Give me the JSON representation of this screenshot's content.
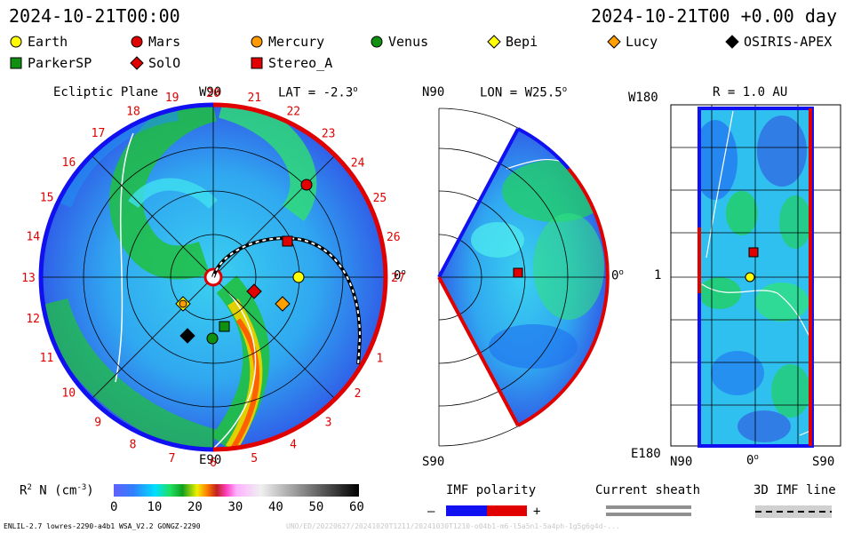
{
  "header": {
    "left_time": "2024-10-21T00:00",
    "right_time": "2024-10-21T00 +0.00 day"
  },
  "legend": [
    {
      "name": "Earth",
      "shape": "circle",
      "color": "#ffff00"
    },
    {
      "name": "Mars",
      "shape": "circle",
      "color": "#e00000"
    },
    {
      "name": "Mercury",
      "shape": "circle",
      "color": "#ff9a00"
    },
    {
      "name": "Venus",
      "shape": "circle",
      "color": "#109010"
    },
    {
      "name": "Bepi",
      "shape": "diamond",
      "color": "#ffff00"
    },
    {
      "name": "Lucy",
      "shape": "diamond",
      "color": "#ffa000"
    },
    {
      "name": "OSIRIS-APEX",
      "shape": "diamond",
      "color": "#000000"
    },
    {
      "name": "ParkerSP",
      "shape": "square",
      "color": "#109010"
    },
    {
      "name": "SolO",
      "shape": "diamond",
      "color": "#e00000"
    },
    {
      "name": "Stereo_A",
      "shape": "square",
      "color": "#e00000"
    }
  ],
  "panel1": {
    "title": "Ecliptic Plane",
    "top_label": "W90",
    "lat_label": "LAT = -2.3",
    "bottom_label": "E90",
    "zero_label": "0",
    "numbers": [
      "19",
      "20",
      "21",
      "22",
      "23",
      "24",
      "25",
      "26",
      "27",
      "0",
      "1",
      "2",
      "3",
      "4",
      "5",
      "6",
      "7",
      "8",
      "9",
      "10",
      "11",
      "12",
      "13",
      "14",
      "15",
      "16",
      "17",
      "18"
    ]
  },
  "panel2": {
    "top_left": "N90",
    "lon_label": "LON = W25.5",
    "bottom_left": "S90",
    "zero_label": "0"
  },
  "panel3": {
    "top_left": "W180",
    "r_label": "R = 1.0 AU",
    "left_one": "1",
    "bottom_left": "E180",
    "x_n90": "N90",
    "x_zero": "0",
    "x_s90": "S90"
  },
  "colorbar": {
    "label": "R  N (cm  )",
    "sup2": "2",
    "supm3": "-3",
    "ticks": [
      "0",
      "10",
      "20",
      "30",
      "40",
      "50",
      "60"
    ]
  },
  "imf": {
    "title": "IMF polarity",
    "minus": "–",
    "plus": "+"
  },
  "sheath": {
    "title": "Current sheath"
  },
  "imf3d": {
    "title": "3D IMF line"
  },
  "footer": {
    "left": "ENLIL-2.7 lowres-2290-a4b1 WSA_V2.2 GONGZ-2290",
    "right": "UNO/ED/20220627/20241020T1211/20241030T1210-o04b1-m6-l5a5n1-5a4ph-1g5g6g4d-..."
  },
  "colors": {
    "red": "#e00000",
    "blue": "#1010f0",
    "yellow": "#ffff00"
  }
}
